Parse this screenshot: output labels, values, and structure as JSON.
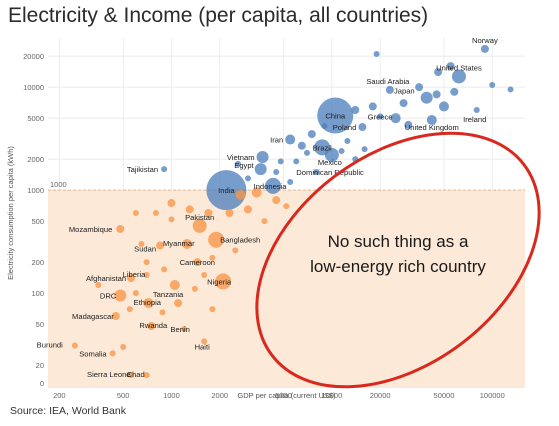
{
  "title": "Electricity & Income (per capita, all countries)",
  "source": "Source: IEA, World Bank",
  "colors": {
    "rich": "#4f81bd",
    "poor": "#f79646",
    "band": "#fce9d8",
    "ellipse": "#d9281e",
    "grid": "#e6e6e6"
  },
  "chart_data": {
    "type": "scatter",
    "title": "Electricity & Income (per capita, all countries)",
    "xlabel": "GDP per capita (current US$)",
    "ylabel": "Electricity consumption per capita (kWh)",
    "x_scale": "log",
    "y_scale": "log",
    "xlim": [
      170,
      160000
    ],
    "ylim": [
      12,
      30000
    ],
    "x_ticks": [
      200,
      500,
      1000,
      2000,
      5000,
      10000,
      20000,
      50000,
      100000
    ],
    "x_tick_labels": [
      "200",
      "500",
      "1000",
      "2000",
      "5000",
      "10000",
      "20000",
      "50000",
      "100000"
    ],
    "y_ticks": [
      20,
      50,
      100,
      200,
      500,
      1000,
      2000,
      5000,
      10000,
      20000
    ],
    "y_tick_labels": [
      "20",
      "50",
      "100",
      "200",
      "500",
      "1000",
      "2000",
      "5000",
      "10000",
      "20000"
    ],
    "y_bottom_label": "0",
    "threshold": {
      "y": 1000,
      "label": "1000"
    },
    "grid": true,
    "annotation": {
      "lines": [
        "No such thing as a",
        "low-energy rich country"
      ]
    },
    "series": [
      {
        "group": "above_1000_kwh",
        "points": [
          {
            "name": "Norway",
            "x": 90000,
            "y": 23500,
            "size": 4
          },
          {
            "name": "United States",
            "x": 62000,
            "y": 12700,
            "size": 7
          },
          {
            "name": "Saudi Arabia",
            "x": 23000,
            "y": 9400,
            "size": 4
          },
          {
            "name": "Japan",
            "x": 39000,
            "y": 7900,
            "size": 6
          },
          {
            "name": "Ireland",
            "x": 80000,
            "y": 6000,
            "size": 3
          },
          {
            "name": "China",
            "x": 10500,
            "y": 5300,
            "size": 18
          },
          {
            "name": "Greece",
            "x": 20000,
            "y": 5200,
            "size": 3
          },
          {
            "name": "Poland",
            "x": 15500,
            "y": 4100,
            "size": 4
          },
          {
            "name": "United Kingdom",
            "x": 42000,
            "y": 4800,
            "size": 5
          },
          {
            "name": "Iran",
            "x": 5500,
            "y": 3100,
            "size": 5
          },
          {
            "name": "Brazil",
            "x": 8700,
            "y": 2600,
            "size": 8
          },
          {
            "name": "Mexico",
            "x": 10000,
            "y": 2200,
            "size": 7
          },
          {
            "name": "Vietnam",
            "x": 3700,
            "y": 2100,
            "size": 6
          },
          {
            "name": "Egypt",
            "x": 3600,
            "y": 1600,
            "size": 6
          },
          {
            "name": "Dominican Republic",
            "x": 8000,
            "y": 1500,
            "size": 3
          },
          {
            "name": "Tajikistan",
            "x": 900,
            "y": 1600,
            "size": 3
          },
          {
            "name": "Indonesia",
            "x": 4300,
            "y": 1100,
            "size": 8
          },
          {
            "name": "India",
            "x": 2200,
            "y": 1000,
            "size": 20
          },
          {
            "name": "",
            "x": 100000,
            "y": 10500,
            "size": 3
          },
          {
            "name": "",
            "x": 130000,
            "y": 9500,
            "size": 3
          },
          {
            "name": "",
            "x": 55000,
            "y": 16000,
            "size": 4
          },
          {
            "name": "",
            "x": 46000,
            "y": 14000,
            "size": 4
          },
          {
            "name": "",
            "x": 58000,
            "y": 9000,
            "size": 4
          },
          {
            "name": "",
            "x": 50000,
            "y": 6500,
            "size": 5
          },
          {
            "name": "",
            "x": 45000,
            "y": 8500,
            "size": 4
          },
          {
            "name": "",
            "x": 35000,
            "y": 10000,
            "size": 4
          },
          {
            "name": "",
            "x": 28000,
            "y": 7000,
            "size": 4
          },
          {
            "name": "",
            "x": 30000,
            "y": 4300,
            "size": 4
          },
          {
            "name": "",
            "x": 25000,
            "y": 5000,
            "size": 5
          },
          {
            "name": "",
            "x": 18000,
            "y": 6500,
            "size": 4
          },
          {
            "name": "",
            "x": 14000,
            "y": 6000,
            "size": 4
          },
          {
            "name": "",
            "x": 12500,
            "y": 3000,
            "size": 3
          },
          {
            "name": "",
            "x": 9000,
            "y": 4200,
            "size": 3
          },
          {
            "name": "",
            "x": 7500,
            "y": 3500,
            "size": 4
          },
          {
            "name": "",
            "x": 6500,
            "y": 2700,
            "size": 4
          },
          {
            "name": "",
            "x": 6000,
            "y": 1900,
            "size": 3
          },
          {
            "name": "",
            "x": 7000,
            "y": 2300,
            "size": 3
          },
          {
            "name": "",
            "x": 11500,
            "y": 2400,
            "size": 3
          },
          {
            "name": "",
            "x": 14000,
            "y": 2000,
            "size": 3
          },
          {
            "name": "",
            "x": 16000,
            "y": 2500,
            "size": 3
          },
          {
            "name": "",
            "x": 4800,
            "y": 1900,
            "size": 3
          },
          {
            "name": "",
            "x": 4500,
            "y": 1500,
            "size": 3
          },
          {
            "name": "",
            "x": 3000,
            "y": 1300,
            "size": 3
          },
          {
            "name": "",
            "x": 2600,
            "y": 1800,
            "size": 3
          },
          {
            "name": "",
            "x": 5500,
            "y": 1200,
            "size": 3
          },
          {
            "name": "",
            "x": 19000,
            "y": 21000,
            "size": 3
          }
        ]
      },
      {
        "group": "below_1000_kwh",
        "points": [
          {
            "name": "Pakistan",
            "x": 1500,
            "y": 450,
            "size": 7
          },
          {
            "name": "Bangladesh",
            "x": 1900,
            "y": 330,
            "size": 8
          },
          {
            "name": "Mozambique",
            "x": 480,
            "y": 420,
            "size": 4
          },
          {
            "name": "Sudan",
            "x": 850,
            "y": 290,
            "size": 4
          },
          {
            "name": "Myanmar",
            "x": 1250,
            "y": 300,
            "size": 5
          },
          {
            "name": "Cameroon",
            "x": 1450,
            "y": 200,
            "size": 4
          },
          {
            "name": "Liberia",
            "x": 700,
            "y": 150,
            "size": 3
          },
          {
            "name": "Afghanistan",
            "x": 560,
            "y": 140,
            "size": 4
          },
          {
            "name": "Tanzania",
            "x": 1050,
            "y": 120,
            "size": 5
          },
          {
            "name": "Nigeria",
            "x": 2100,
            "y": 130,
            "size": 8
          },
          {
            "name": "DRC",
            "x": 480,
            "y": 95,
            "size": 6
          },
          {
            "name": "Ethiopia",
            "x": 720,
            "y": 80,
            "size": 5
          },
          {
            "name": "Madagascar",
            "x": 450,
            "y": 60,
            "size": 4
          },
          {
            "name": "Rwanda",
            "x": 750,
            "y": 48,
            "size": 4
          },
          {
            "name": "Benin",
            "x": 1200,
            "y": 45,
            "size": 3
          },
          {
            "name": "Haiti",
            "x": 1600,
            "y": 34,
            "size": 3
          },
          {
            "name": "Burundi",
            "x": 250,
            "y": 31,
            "size": 3
          },
          {
            "name": "Somalia",
            "x": 430,
            "y": 26,
            "size": 3
          },
          {
            "name": "Sierra Leone",
            "x": 560,
            "y": 16,
            "size": 3
          },
          {
            "name": "Chad",
            "x": 700,
            "y": 16,
            "size": 3
          },
          {
            "name": "",
            "x": 2700,
            "y": 900,
            "size": 5
          },
          {
            "name": "",
            "x": 3400,
            "y": 950,
            "size": 5
          },
          {
            "name": "",
            "x": 3000,
            "y": 650,
            "size": 4
          },
          {
            "name": "",
            "x": 2300,
            "y": 600,
            "size": 4
          },
          {
            "name": "",
            "x": 1700,
            "y": 600,
            "size": 4
          },
          {
            "name": "",
            "x": 1300,
            "y": 650,
            "size": 4
          },
          {
            "name": "",
            "x": 1000,
            "y": 750,
            "size": 4
          },
          {
            "name": "",
            "x": 1000,
            "y": 520,
            "size": 3
          },
          {
            "name": "",
            "x": 800,
            "y": 600,
            "size": 3
          },
          {
            "name": "",
            "x": 600,
            "y": 600,
            "size": 3
          },
          {
            "name": "",
            "x": 2500,
            "y": 260,
            "size": 3
          },
          {
            "name": "",
            "x": 1800,
            "y": 220,
            "size": 3
          },
          {
            "name": "",
            "x": 700,
            "y": 200,
            "size": 3
          },
          {
            "name": "",
            "x": 600,
            "y": 100,
            "size": 3
          },
          {
            "name": "",
            "x": 900,
            "y": 170,
            "size": 3
          },
          {
            "name": "",
            "x": 1600,
            "y": 150,
            "size": 3
          },
          {
            "name": "",
            "x": 1100,
            "y": 80,
            "size": 4
          },
          {
            "name": "",
            "x": 1400,
            "y": 110,
            "size": 3
          },
          {
            "name": "",
            "x": 550,
            "y": 70,
            "size": 3
          },
          {
            "name": "",
            "x": 880,
            "y": 65,
            "size": 3
          },
          {
            "name": "",
            "x": 350,
            "y": 120,
            "size": 3
          },
          {
            "name": "",
            "x": 1800,
            "y": 70,
            "size": 3
          },
          {
            "name": "",
            "x": 4500,
            "y": 800,
            "size": 4
          },
          {
            "name": "",
            "x": 5200,
            "y": 700,
            "size": 3
          },
          {
            "name": "",
            "x": 3800,
            "y": 500,
            "size": 3
          },
          {
            "name": "",
            "x": 650,
            "y": 300,
            "size": 3
          },
          {
            "name": "",
            "x": 500,
            "y": 30,
            "size": 3
          }
        ]
      }
    ]
  }
}
